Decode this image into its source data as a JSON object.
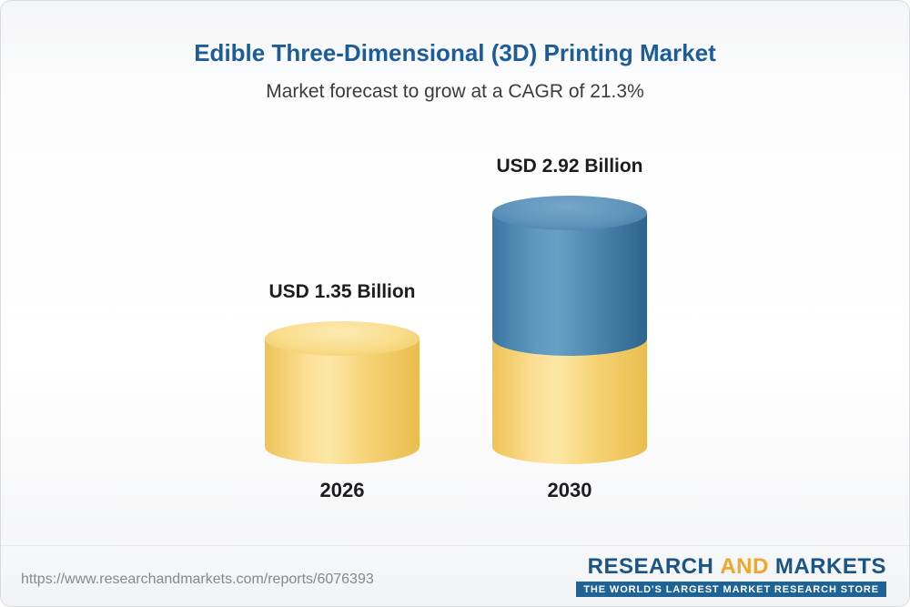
{
  "chart_data": {
    "type": "bar",
    "title": "Edible Three-Dimensional (3D) Printing Market",
    "subtitle": "Market forecast to grow at a CAGR of 21.3%",
    "unit": "USD Billion",
    "cagr_percent": 21.3,
    "categories": [
      "2026",
      "2030"
    ],
    "values": [
      1.35,
      2.92
    ],
    "ylim": [
      0,
      3.2
    ],
    "grid": false,
    "legend": "none",
    "bars": [
      {
        "category": "2026",
        "label": "USD 1.35 Billion",
        "total": 1.35,
        "segments": [
          {
            "name": "market-size-2026",
            "color": "yellow",
            "value": 1.35
          }
        ]
      },
      {
        "category": "2030",
        "label": "USD 2.92 Billion",
        "total": 2.92,
        "segments": [
          {
            "name": "base-2026",
            "color": "yellow",
            "value": 1.35
          },
          {
            "name": "growth-2026-2030",
            "color": "blue",
            "value": 1.57
          }
        ]
      }
    ],
    "colors": {
      "yellow": "#F5CE68",
      "blue": "#3E7CA8",
      "title_blue": "#1C5D99"
    }
  },
  "footer": {
    "url": "https://www.researchandmarkets.com/reports/6076393",
    "logo": {
      "research": "RESEARCH",
      "and": "AND",
      "markets": "MARKETS",
      "tagline": "THE WORLD'S LARGEST MARKET RESEARCH STORE",
      "colors": {
        "navy": "#1B5486",
        "gold": "#F0A62A",
        "tagline_bg": "#1D6396"
      }
    }
  }
}
